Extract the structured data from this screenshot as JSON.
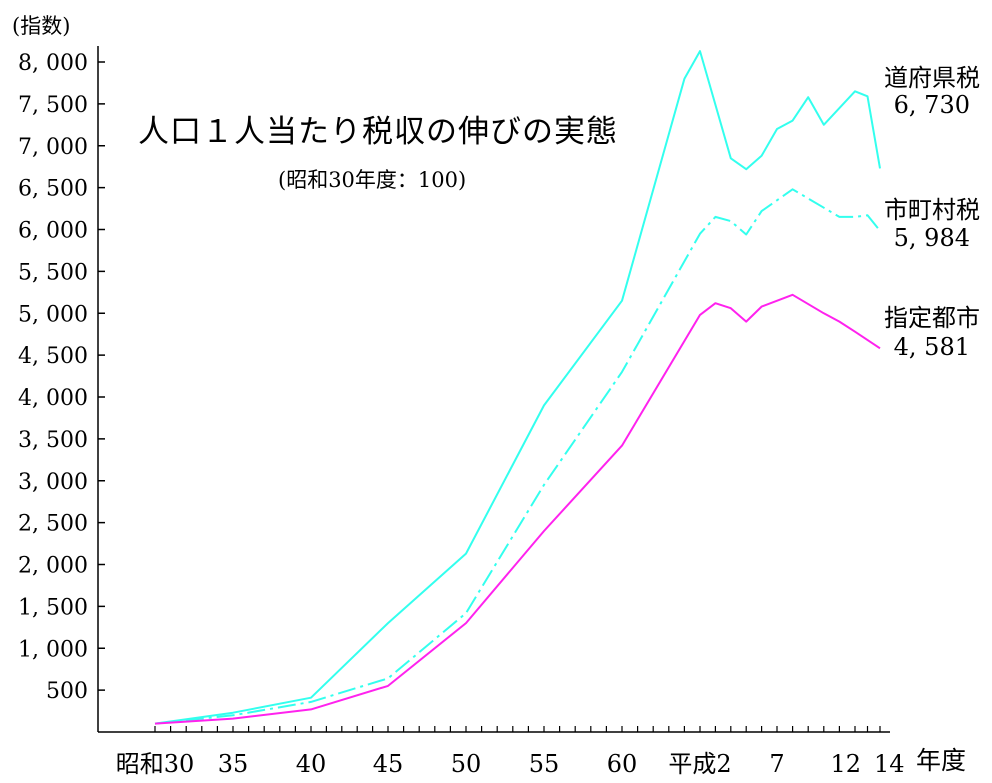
{
  "chart_data": {
    "type": "line",
    "title": "人口１人当たり税収の伸びの実態",
    "subtitle": "(昭和30年度：100)",
    "ylabel": "(指数)",
    "xlabel": "年度",
    "ylim": [
      0,
      8000
    ],
    "yticks": [
      "500",
      "1, 000",
      "1, 500",
      "2, 000",
      "2, 500",
      "3, 000",
      "3, 500",
      "4, 000",
      "4, 500",
      "5, 000",
      "5, 500",
      "6, 000",
      "6, 500",
      "7, 000",
      "7, 500",
      "8, 000"
    ],
    "ytick_values": [
      500,
      1000,
      1500,
      2000,
      2500,
      3000,
      3500,
      4000,
      4500,
      5000,
      5500,
      6000,
      6500,
      7000,
      7500,
      8000
    ],
    "x_years": [
      30,
      31,
      32,
      33,
      34,
      35,
      36,
      37,
      38,
      39,
      40,
      41,
      42,
      43,
      44,
      45,
      46,
      47,
      48,
      49,
      50,
      51,
      52,
      53,
      54,
      55,
      56,
      57,
      58,
      59,
      60,
      61,
      62,
      63,
      64,
      65,
      66,
      67,
      68,
      69,
      70,
      71,
      72,
      73,
      74,
      75,
      76,
      77
    ],
    "xticks": [
      {
        "label": "昭和30",
        "year": 30
      },
      {
        "label": "35",
        "year": 35
      },
      {
        "label": "40",
        "year": 40
      },
      {
        "label": "45",
        "year": 45
      },
      {
        "label": "50",
        "year": 50
      },
      {
        "label": "55",
        "year": 55
      },
      {
        "label": "60",
        "year": 60
      },
      {
        "label": "平成2",
        "year": 65
      },
      {
        "label": "7",
        "year": 70
      },
      {
        "label": "12",
        "year": 75
      },
      {
        "label": "14",
        "year": 77
      }
    ],
    "series": [
      {
        "name": "道府県税",
        "end_value": "6, 730",
        "color": "#33ffee",
        "dash": "solid",
        "points": [
          [
            30,
            100
          ],
          [
            35,
            230
          ],
          [
            40,
            410
          ],
          [
            45,
            1300
          ],
          [
            50,
            2130
          ],
          [
            55,
            3900
          ],
          [
            60,
            5150
          ],
          [
            64,
            7800
          ],
          [
            65,
            8130
          ],
          [
            67,
            6850
          ],
          [
            68,
            6720
          ],
          [
            69,
            6880
          ],
          [
            70,
            7200
          ],
          [
            71,
            7300
          ],
          [
            72,
            7580
          ],
          [
            73,
            7250
          ],
          [
            75,
            7650
          ],
          [
            76,
            7590
          ],
          [
            77,
            6730
          ]
        ]
      },
      {
        "name": "市町村税",
        "end_value": "5, 984",
        "color": "#33ffee",
        "dash": "dashdot",
        "points": [
          [
            30,
            100
          ],
          [
            35,
            200
          ],
          [
            40,
            360
          ],
          [
            45,
            640
          ],
          [
            50,
            1420
          ],
          [
            55,
            2950
          ],
          [
            60,
            4300
          ],
          [
            65,
            5950
          ],
          [
            66,
            6150
          ],
          [
            67,
            6100
          ],
          [
            68,
            5940
          ],
          [
            69,
            6220
          ],
          [
            71,
            6480
          ],
          [
            73,
            6260
          ],
          [
            74,
            6150
          ],
          [
            75,
            6150
          ],
          [
            76,
            6170
          ],
          [
            77,
            5984
          ]
        ]
      },
      {
        "name": "指定都市",
        "end_value": "4, 581",
        "color": "#ff22ee",
        "dash": "solid",
        "points": [
          [
            30,
            100
          ],
          [
            35,
            160
          ],
          [
            40,
            270
          ],
          [
            45,
            550
          ],
          [
            50,
            1300
          ],
          [
            55,
            2400
          ],
          [
            60,
            3420
          ],
          [
            65,
            4980
          ],
          [
            66,
            5120
          ],
          [
            67,
            5060
          ],
          [
            68,
            4900
          ],
          [
            69,
            5080
          ],
          [
            71,
            5220
          ],
          [
            73,
            5000
          ],
          [
            74,
            4900
          ],
          [
            75,
            4780
          ],
          [
            77,
            4581
          ]
        ]
      }
    ]
  }
}
